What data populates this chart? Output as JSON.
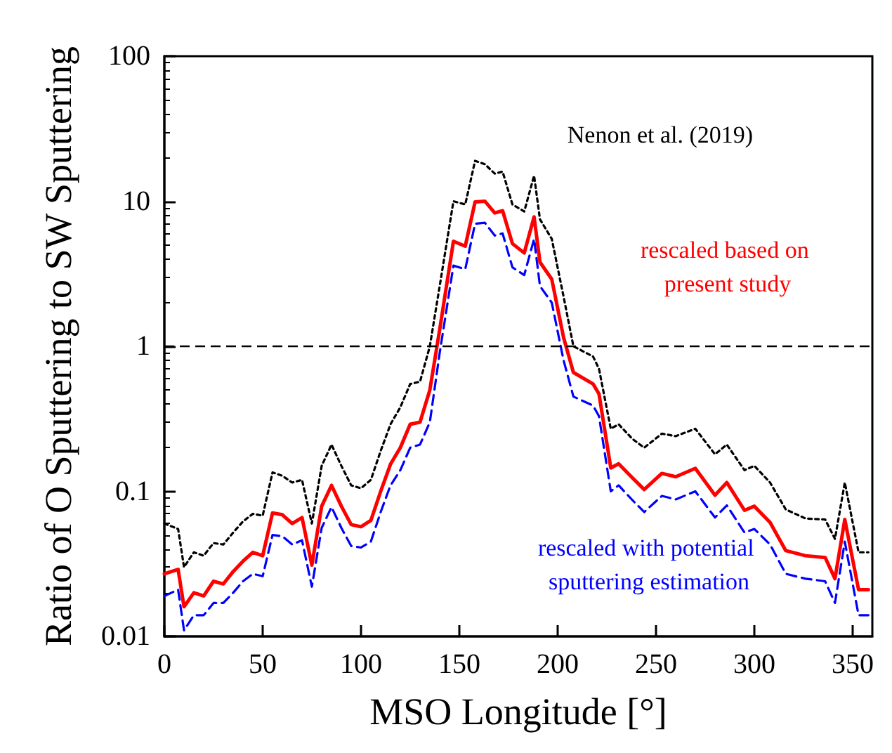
{
  "chart_data": {
    "type": "line",
    "xlabel": "MSO Longitude [°]",
    "ylabel": "Ratio of O Sputtering to SW Sputtering",
    "xlim": [
      0,
      360
    ],
    "xticks": [
      0,
      50,
      100,
      150,
      200,
      250,
      300,
      350
    ],
    "ylim": [
      0.01,
      100
    ],
    "yticks": [
      0.01,
      0.1,
      1,
      10,
      100
    ],
    "log": "y",
    "grid": false,
    "legend": false,
    "marker": "none",
    "ref_lines": [
      {
        "axis": "y",
        "value": 1,
        "label": null,
        "color": "#000000",
        "line_style": "dashed"
      }
    ],
    "series": [
      {
        "name": "Nenon et al. (2019)",
        "color": "#000000",
        "line_style": "dotted",
        "x": [
          0,
          7,
          10,
          15,
          20,
          25,
          30,
          35,
          40,
          45,
          50,
          55,
          60,
          65,
          70,
          75,
          80,
          85,
          90,
          95,
          100,
          105,
          110,
          115,
          120,
          125,
          130,
          135,
          140,
          147,
          153,
          158,
          163,
          168,
          172,
          177,
          183,
          188,
          191,
          197,
          203,
          208,
          218,
          221,
          227,
          231,
          238,
          244,
          253,
          260,
          270,
          280,
          286,
          295,
          300,
          308,
          316,
          326,
          336,
          341,
          346,
          353,
          358
        ],
        "values": [
          0.06,
          0.055,
          0.03,
          0.038,
          0.036,
          0.044,
          0.043,
          0.052,
          0.062,
          0.07,
          0.068,
          0.135,
          0.128,
          0.115,
          0.12,
          0.06,
          0.15,
          0.21,
          0.15,
          0.11,
          0.105,
          0.12,
          0.19,
          0.29,
          0.38,
          0.55,
          0.57,
          1.0,
          2.6,
          10,
          9.5,
          19,
          18,
          15.5,
          16,
          9.5,
          8.5,
          15,
          7.5,
          5.5,
          2.2,
          1.0,
          0.85,
          0.7,
          0.27,
          0.29,
          0.23,
          0.2,
          0.25,
          0.24,
          0.27,
          0.18,
          0.21,
          0.14,
          0.15,
          0.115,
          0.075,
          0.065,
          0.064,
          0.047,
          0.115,
          0.038,
          0.038
        ]
      },
      {
        "name": "rescaled based on present study",
        "color": "#ff0000",
        "line_style": "solid",
        "x": [
          0,
          7,
          10,
          15,
          20,
          25,
          30,
          35,
          40,
          45,
          50,
          55,
          60,
          65,
          70,
          75,
          80,
          85,
          90,
          95,
          100,
          105,
          110,
          115,
          120,
          125,
          130,
          135,
          140,
          147,
          153,
          158,
          163,
          168,
          172,
          177,
          183,
          188,
          191,
          197,
          203,
          208,
          218,
          221,
          227,
          231,
          238,
          244,
          253,
          260,
          270,
          280,
          286,
          295,
          300,
          308,
          316,
          326,
          336,
          341,
          346,
          353,
          358
        ],
        "values": [
          0.027,
          0.029,
          0.016,
          0.02,
          0.019,
          0.024,
          0.023,
          0.028,
          0.033,
          0.038,
          0.036,
          0.071,
          0.069,
          0.06,
          0.066,
          0.031,
          0.079,
          0.11,
          0.079,
          0.059,
          0.057,
          0.063,
          0.1,
          0.154,
          0.2,
          0.29,
          0.3,
          0.5,
          1.3,
          5.3,
          4.9,
          9.9,
          10,
          8.3,
          8.6,
          5.1,
          4.4,
          7.8,
          3.8,
          2.9,
          1.15,
          0.66,
          0.55,
          0.47,
          0.145,
          0.155,
          0.124,
          0.103,
          0.133,
          0.126,
          0.144,
          0.094,
          0.115,
          0.074,
          0.079,
          0.061,
          0.039,
          0.036,
          0.035,
          0.025,
          0.064,
          0.021,
          0.021
        ]
      },
      {
        "name": "rescaled with potential sputtering estimation",
        "color": "#0000ff",
        "line_style": "dashed",
        "x": [
          0,
          7,
          10,
          15,
          20,
          25,
          30,
          35,
          40,
          45,
          50,
          55,
          60,
          65,
          70,
          75,
          80,
          85,
          90,
          95,
          100,
          105,
          110,
          115,
          120,
          125,
          130,
          135,
          140,
          147,
          153,
          158,
          163,
          168,
          172,
          177,
          183,
          188,
          191,
          197,
          203,
          208,
          218,
          221,
          227,
          231,
          238,
          244,
          253,
          260,
          270,
          280,
          286,
          295,
          300,
          308,
          316,
          326,
          336,
          341,
          346,
          353,
          358
        ],
        "values": [
          0.019,
          0.021,
          0.011,
          0.014,
          0.014,
          0.017,
          0.017,
          0.02,
          0.024,
          0.027,
          0.026,
          0.05,
          0.049,
          0.043,
          0.046,
          0.022,
          0.056,
          0.078,
          0.056,
          0.042,
          0.041,
          0.045,
          0.072,
          0.11,
          0.14,
          0.2,
          0.21,
          0.3,
          0.9,
          3.6,
          3.4,
          7.0,
          7.1,
          5.8,
          6.0,
          3.5,
          3.1,
          5.5,
          2.6,
          2.0,
          0.8,
          0.45,
          0.39,
          0.33,
          0.1,
          0.11,
          0.087,
          0.072,
          0.093,
          0.088,
          0.1,
          0.066,
          0.08,
          0.052,
          0.055,
          0.043,
          0.027,
          0.025,
          0.024,
          0.017,
          0.045,
          0.014,
          0.014
        ]
      }
    ]
  }
}
